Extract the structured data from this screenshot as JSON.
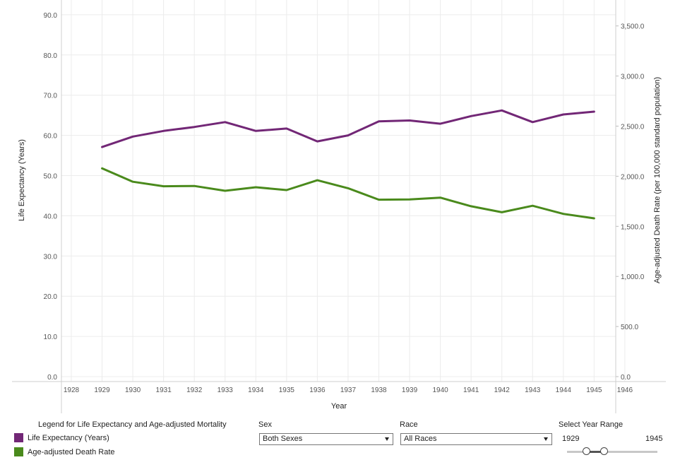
{
  "chart_data": {
    "type": "line",
    "x": [
      1929,
      1930,
      1931,
      1932,
      1933,
      1934,
      1935,
      1936,
      1937,
      1938,
      1939,
      1940,
      1941,
      1942,
      1943,
      1944,
      1945
    ],
    "xlim": [
      1928,
      1946
    ],
    "x_ticks": [
      "1928",
      "1929",
      "1930",
      "1931",
      "1932",
      "1933",
      "1934",
      "1935",
      "1936",
      "1937",
      "1938",
      "1939",
      "1940",
      "1941",
      "1942",
      "1943",
      "1944",
      "1945",
      "1946"
    ],
    "xlabel": "Year",
    "y_left": {
      "label": "Life Expectancy (Years)",
      "ylim": [
        0,
        90
      ],
      "ticks": [
        "0.0",
        "10.0",
        "20.0",
        "30.0",
        "40.0",
        "50.0",
        "60.0",
        "70.0",
        "80.0",
        "90.0"
      ]
    },
    "y_right": {
      "label": "Age-adjusted Death Rate (per 100,000 standard population)",
      "ylim": [
        0,
        3500
      ],
      "ticks": [
        "0.0",
        "500.0",
        "1,000.0",
        "1,500.0",
        "2,000.0",
        "2,500.0",
        "3,000.0",
        "3,500.0"
      ]
    },
    "series": [
      {
        "name": "Life Expectancy (Years)",
        "axis": "left",
        "color": "#722776",
        "values": [
          57.1,
          59.7,
          61.1,
          62.1,
          63.3,
          61.1,
          61.7,
          58.5,
          60.0,
          63.5,
          63.7,
          62.9,
          64.8,
          66.2,
          63.3,
          65.2,
          65.9
        ]
      },
      {
        "name": "Age-adjusted Death Rate",
        "axis": "right",
        "color": "#4a8a1c",
        "values": [
          2078.0,
          1945.0,
          1900.0,
          1903.0,
          1855.0,
          1890.0,
          1862.0,
          1960.0,
          1880.0,
          1766.0,
          1768.0,
          1786.0,
          1700.0,
          1640.0,
          1705.0,
          1624.0,
          1580.0
        ]
      }
    ],
    "grid": true
  },
  "legend": {
    "title": "Legend for Life Expectancy and Age-adjusted Mortality",
    "items": [
      {
        "label": "Life Expectancy (Years)",
        "color": "#722776"
      },
      {
        "label": "Age-adjusted Death Rate",
        "color": "#4a8a1c"
      }
    ]
  },
  "controls": {
    "sex": {
      "label": "Sex",
      "value": "Both Sexes"
    },
    "race": {
      "label": "Race",
      "value": "All Races"
    },
    "year_range": {
      "label": "Select Year Range",
      "start": "1929",
      "end": "1945"
    }
  }
}
